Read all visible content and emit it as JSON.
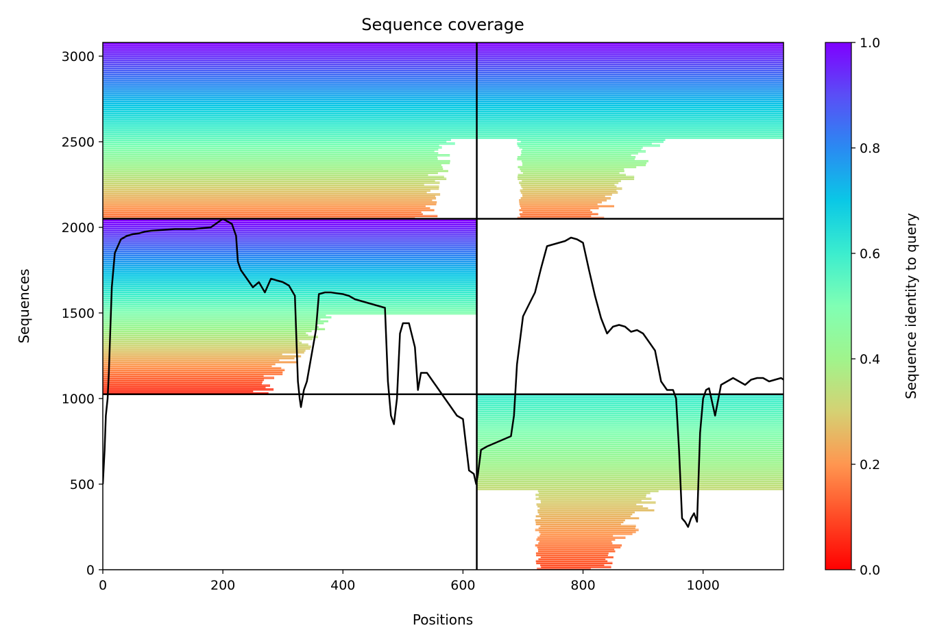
{
  "chart_data": {
    "type": "heatmap",
    "title": "Sequence coverage",
    "xlabel": "Positions",
    "ylabel": "Sequences",
    "xlim": [
      0,
      1134
    ],
    "ylim": [
      0,
      3080
    ],
    "xticks": [
      0,
      200,
      400,
      600,
      800,
      1000
    ],
    "yticks": [
      0,
      500,
      1000,
      1500,
      2000,
      2500,
      3000
    ],
    "colormap": "rainbow",
    "colorbar": {
      "label": "Sequence identity to query",
      "range": [
        0,
        1
      ],
      "ticks": [
        "0.0",
        "0.2",
        "0.4",
        "0.6",
        "0.8",
        "1.0"
      ]
    },
    "block_boundaries": {
      "x": 623,
      "y": [
        1025,
        2050
      ]
    },
    "blocks": [
      {
        "name": "top-left",
        "x": [
          0,
          623
        ],
        "y": [
          2050,
          3080
        ],
        "identity_range": [
          0.15,
          1.0
        ],
        "alignment_end_x": 520
      },
      {
        "name": "top-right",
        "x": [
          623,
          1134
        ],
        "y": [
          2050,
          3080
        ],
        "identity_range": [
          0.15,
          1.0
        ],
        "alignment_start_x": 690,
        "alignment_end_x": 800
      },
      {
        "name": "middle-left",
        "x": [
          0,
          623
        ],
        "y": [
          1025,
          2050
        ],
        "identity_range": [
          0.05,
          1.0
        ],
        "alignment_end_x": 240
      },
      {
        "name": "bottom-right",
        "x": [
          623,
          1134
        ],
        "y": [
          0,
          1025
        ],
        "identity_range": [
          0.1,
          0.6
        ],
        "alignment_start_x": 720,
        "alignment_end_x": 805
      }
    ],
    "coverage_line": {
      "color": "#000000",
      "x": [
        0,
        3,
        5,
        8,
        10,
        12,
        15,
        20,
        30,
        40,
        50,
        60,
        70,
        80,
        100,
        120,
        150,
        180,
        200,
        215,
        222,
        225,
        230,
        240,
        250,
        260,
        270,
        280,
        290,
        300,
        310,
        320,
        325,
        328,
        330,
        335,
        340,
        345,
        350,
        355,
        360,
        370,
        380,
        390,
        400,
        410,
        420,
        440,
        460,
        470,
        475,
        480,
        485,
        490,
        495,
        500,
        505,
        510,
        520,
        525,
        530,
        540,
        550,
        560,
        570,
        580,
        590,
        600,
        610,
        618,
        622,
        625,
        630,
        640,
        660,
        680,
        685,
        690,
        700,
        710,
        720,
        730,
        740,
        750,
        760,
        770,
        780,
        790,
        800,
        810,
        820,
        830,
        840,
        850,
        860,
        870,
        880,
        890,
        900,
        910,
        920,
        930,
        940,
        950,
        955,
        960,
        965,
        970,
        975,
        980,
        985,
        990,
        995,
        1000,
        1005,
        1010,
        1020,
        1030,
        1040,
        1050,
        1060,
        1070,
        1080,
        1090,
        1100,
        1110,
        1120,
        1130,
        1134
      ],
      "y": [
        500,
        700,
        900,
        1000,
        1150,
        1350,
        1650,
        1850,
        1930,
        1950,
        1960,
        1965,
        1975,
        1980,
        1985,
        1990,
        1990,
        2000,
        2050,
        2020,
        1950,
        1800,
        1750,
        1700,
        1650,
        1680,
        1620,
        1700,
        1690,
        1680,
        1660,
        1600,
        1100,
        1000,
        950,
        1050,
        1100,
        1200,
        1300,
        1400,
        1610,
        1620,
        1620,
        1615,
        1610,
        1600,
        1580,
        1560,
        1540,
        1530,
        1100,
        900,
        850,
        1000,
        1380,
        1440,
        1440,
        1440,
        1300,
        1050,
        1150,
        1150,
        1100,
        1050,
        1000,
        950,
        900,
        880,
        580,
        560,
        500,
        560,
        700,
        720,
        750,
        780,
        900,
        1200,
        1480,
        1550,
        1620,
        1760,
        1890,
        1900,
        1910,
        1920,
        1940,
        1930,
        1910,
        1750,
        1600,
        1470,
        1380,
        1420,
        1430,
        1420,
        1390,
        1400,
        1380,
        1330,
        1280,
        1100,
        1050,
        1050,
        1000,
        700,
        300,
        280,
        250,
        300,
        330,
        280,
        800,
        1000,
        1050,
        1060,
        900,
        1080,
        1100,
        1120,
        1100,
        1080,
        1110,
        1120,
        1120,
        1100,
        1110,
        1120,
        1110
      ]
    }
  }
}
